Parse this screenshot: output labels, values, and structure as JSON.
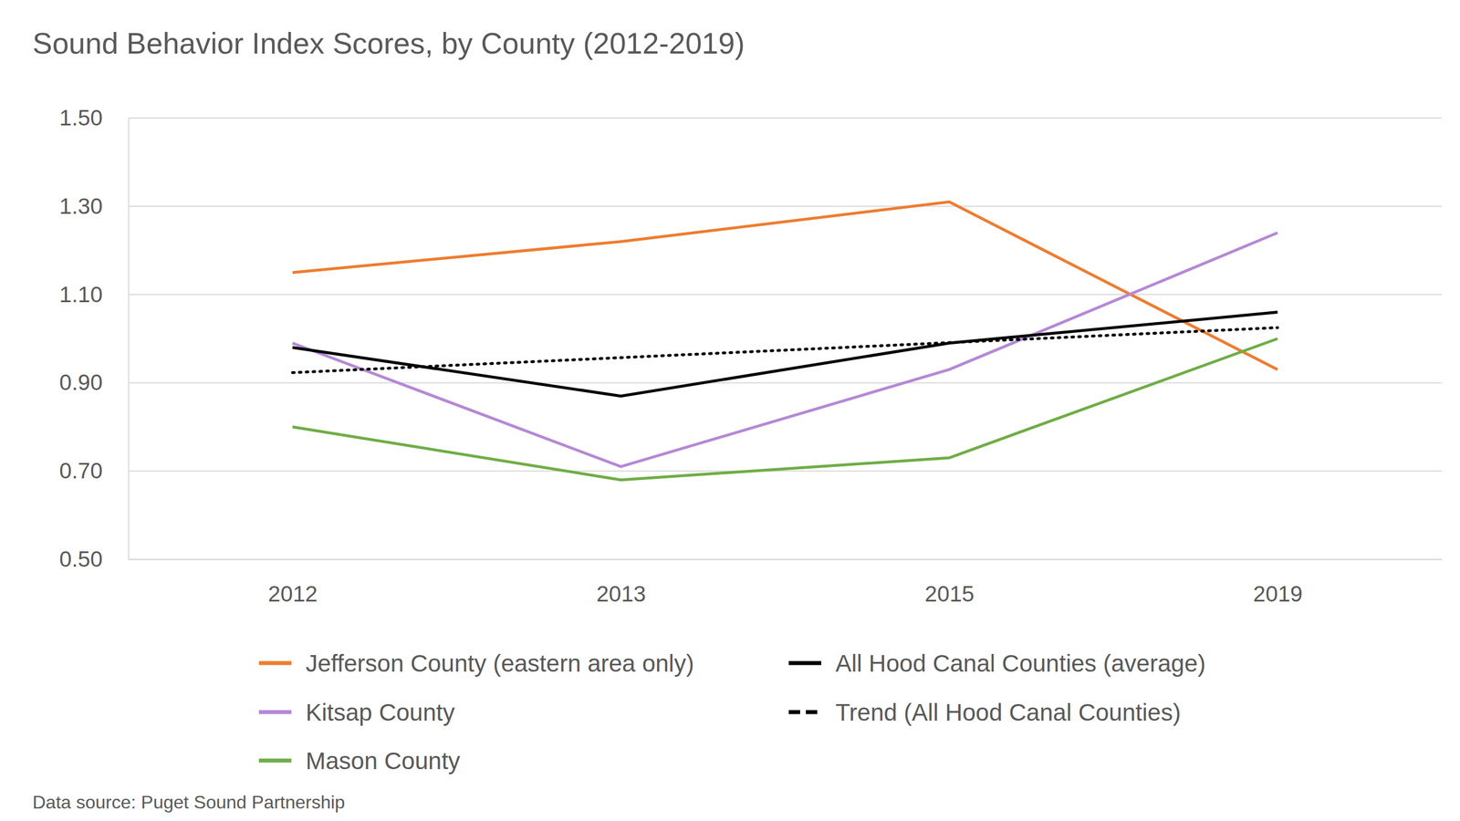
{
  "chart_data": {
    "type": "line",
    "title": "Sound Behavior Index Scores, by County (2012-2019)",
    "source": "Data source: Puget Sound Partnership",
    "categories": [
      "2012",
      "2013",
      "2015",
      "2019"
    ],
    "series": [
      {
        "name": "Jefferson County (eastern area only)",
        "color": "#ed7d31",
        "line_style": "solid",
        "values": [
          1.15,
          1.22,
          1.31,
          0.93
        ]
      },
      {
        "name": "Kitsap County",
        "color": "#b589d6",
        "line_style": "solid",
        "values": [
          0.99,
          0.71,
          0.93,
          1.24
        ]
      },
      {
        "name": "Mason County",
        "color": "#70ad47",
        "line_style": "solid",
        "values": [
          0.8,
          0.68,
          0.73,
          1.0
        ]
      },
      {
        "name": "All Hood Canal Counties (average)",
        "color": "#000000",
        "line_style": "solid",
        "values": [
          0.98,
          0.87,
          0.99,
          1.06
        ]
      },
      {
        "name": "Trend (All Hood Canal Counties)",
        "color": "#000000",
        "line_style": "dotted",
        "values": [
          0.923,
          0.957,
          0.991,
          1.025
        ]
      }
    ],
    "ylim": [
      0.5,
      1.5
    ],
    "yticks": [
      {
        "value": 0.5,
        "label": "0.50"
      },
      {
        "value": 0.7,
        "label": "0.70"
      },
      {
        "value": 0.9,
        "label": "0.90"
      },
      {
        "value": 1.1,
        "label": "1.10"
      },
      {
        "value": 1.3,
        "label": "1.30"
      },
      {
        "value": 1.5,
        "label": "1.50"
      }
    ],
    "grid": true,
    "legend": "bottom"
  }
}
